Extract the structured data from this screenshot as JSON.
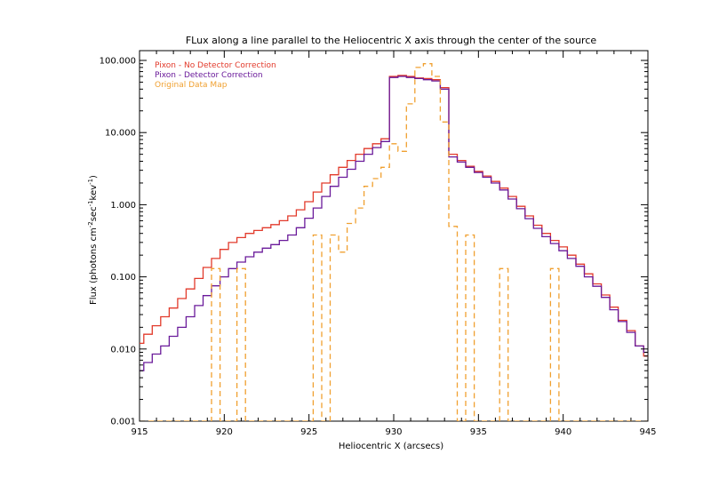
{
  "chart_data": {
    "type": "line",
    "title": "FLux along a line parallel to the Heliocentric X axis through the center of the source",
    "xlabel": "Heliocentric X (arcsecs)",
    "ylabel": {
      "prefix": "Flux (photons cm",
      "exp1": "-2",
      "mid1": "sec",
      "exp2": "-1",
      "mid2": "kev",
      "exp3": "-1",
      "suffix": ")"
    },
    "xlim": [
      915,
      945
    ],
    "ylim": [
      0.001,
      100
    ],
    "yscale": "log",
    "xticks": [
      915,
      920,
      925,
      930,
      935,
      940,
      945
    ],
    "xtick_labels": [
      "915",
      "920",
      "925",
      "930",
      "935",
      "940",
      "945"
    ],
    "yticks": [
      0.001,
      0.01,
      0.1,
      1,
      10,
      100
    ],
    "ytick_labels": [
      "0.001",
      "0.010",
      "0.100",
      "1.000",
      "10.000",
      "100.000"
    ],
    "legend_position": "top-left",
    "series": [
      {
        "name": "Pixon - No Detector Correction",
        "color": "#e23a2b",
        "style": "solid-step",
        "x": [
          915,
          915.5,
          916,
          916.5,
          917,
          917.5,
          918,
          918.5,
          919,
          919.5,
          920,
          920.5,
          921,
          921.5,
          922,
          922.5,
          923,
          923.5,
          924,
          924.5,
          925,
          925.5,
          926,
          926.5,
          927,
          927.5,
          928,
          928.5,
          929,
          929.5,
          930,
          930.5,
          931,
          931.5,
          932,
          932.5,
          933,
          933.5,
          934,
          934.5,
          935,
          935.5,
          936,
          936.5,
          937,
          937.5,
          938,
          938.5,
          939,
          939.5,
          940,
          940.5,
          941,
          941.5,
          942,
          942.5,
          943,
          943.5,
          944,
          944.5,
          945
        ],
        "y": [
          0.012,
          0.016,
          0.021,
          0.028,
          0.037,
          0.05,
          0.068,
          0.095,
          0.135,
          0.18,
          0.24,
          0.3,
          0.35,
          0.4,
          0.44,
          0.48,
          0.53,
          0.6,
          0.7,
          0.85,
          1.1,
          1.5,
          2.0,
          2.6,
          3.3,
          4.1,
          5.0,
          6.0,
          7.0,
          8.2,
          60,
          62,
          60,
          57,
          56,
          54,
          42,
          5.0,
          4.1,
          3.4,
          2.9,
          2.5,
          2.1,
          1.7,
          1.3,
          0.95,
          0.7,
          0.52,
          0.4,
          0.32,
          0.26,
          0.2,
          0.15,
          0.11,
          0.08,
          0.056,
          0.038,
          0.025,
          0.018,
          0.011,
          0.008
        ]
      },
      {
        "name": "Pixon - Detector Correction",
        "color": "#6a1a9a",
        "style": "solid-step",
        "x": [
          915,
          915.5,
          916,
          916.5,
          917,
          917.5,
          918,
          918.5,
          919,
          919.5,
          920,
          920.5,
          921,
          921.5,
          922,
          922.5,
          923,
          923.5,
          924,
          924.5,
          925,
          925.5,
          926,
          926.5,
          927,
          927.5,
          928,
          928.5,
          929,
          929.5,
          930,
          930.5,
          931,
          931.5,
          932,
          932.5,
          933,
          933.5,
          934,
          934.5,
          935,
          935.5,
          936,
          936.5,
          937,
          937.5,
          938,
          938.5,
          939,
          939.5,
          940,
          940.5,
          941,
          941.5,
          942,
          942.5,
          943,
          943.5,
          944,
          944.5,
          945
        ],
        "y": [
          0.005,
          0.0065,
          0.0085,
          0.011,
          0.015,
          0.02,
          0.028,
          0.04,
          0.055,
          0.075,
          0.1,
          0.13,
          0.16,
          0.19,
          0.22,
          0.25,
          0.28,
          0.32,
          0.38,
          0.48,
          0.65,
          0.9,
          1.3,
          1.8,
          2.4,
          3.1,
          4.0,
          5.0,
          6.2,
          7.5,
          58,
          60,
          58,
          56,
          54,
          52,
          40,
          4.6,
          3.9,
          3.3,
          2.8,
          2.4,
          2.0,
          1.6,
          1.2,
          0.88,
          0.64,
          0.47,
          0.36,
          0.29,
          0.23,
          0.18,
          0.14,
          0.1,
          0.074,
          0.052,
          0.035,
          0.024,
          0.017,
          0.011,
          0.009
        ]
      },
      {
        "name": "Original Data Map",
        "color": "#f0a030",
        "style": "dashed-step",
        "x": [
          915,
          915.5,
          916,
          916.5,
          917,
          917.5,
          918,
          918.5,
          919,
          919.5,
          920,
          920.5,
          921,
          921.5,
          922,
          922.5,
          923,
          923.5,
          924,
          924.5,
          925,
          925.5,
          926,
          926.5,
          927,
          927.5,
          928,
          928.5,
          929,
          929.5,
          930,
          930.5,
          931,
          931.5,
          932,
          932.5,
          933,
          933.5,
          934,
          934.5,
          935,
          935.5,
          936,
          936.5,
          937,
          937.5,
          938,
          938.5,
          939,
          939.5,
          940,
          940.5,
          941,
          941.5,
          942,
          942.5,
          943,
          943.5,
          944,
          944.5,
          945
        ],
        "y": [
          0.001,
          0.001,
          0.001,
          0.001,
          0.001,
          0.001,
          0.001,
          0.001,
          0.001,
          0.13,
          0.001,
          0.001,
          0.13,
          0.001,
          0.001,
          0.001,
          0.001,
          0.001,
          0.001,
          0.001,
          0.001,
          0.38,
          0.001,
          0.38,
          0.22,
          0.55,
          0.9,
          1.8,
          2.3,
          3.3,
          7.0,
          5.5,
          25,
          80,
          90,
          60,
          14,
          0.5,
          0.001,
          0.38,
          0.001,
          0.001,
          0.001,
          0.13,
          0.001,
          0.001,
          0.001,
          0.001,
          0.001,
          0.13,
          0.001,
          0.001,
          0.001,
          0.001,
          0.001,
          0.001,
          0.001,
          0.001,
          0.001,
          0.001,
          0.001
        ]
      }
    ]
  }
}
